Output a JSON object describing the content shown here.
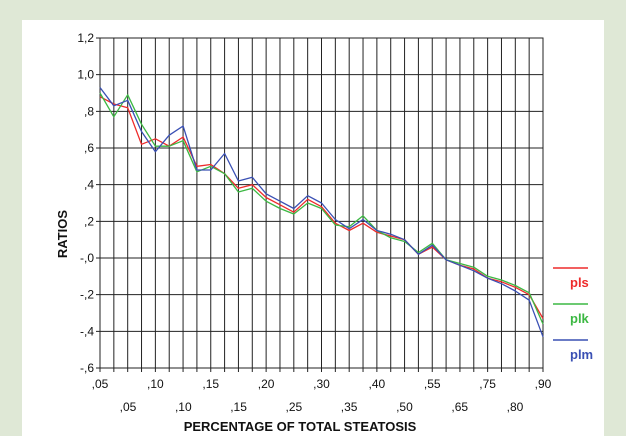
{
  "chart_data": {
    "type": "line",
    "title": "",
    "xlabel": "PERCENTAGE OF TOTAL STEATOSIS",
    "ylabel": "RATIOS",
    "ylim": [
      -0.6,
      1.2
    ],
    "yticks": [
      {
        "value": 1.2,
        "label": "1,2"
      },
      {
        "value": 1.0,
        "label": "1,0"
      },
      {
        "value": 0.8,
        "label": ",8"
      },
      {
        "value": 0.6,
        "label": ",6"
      },
      {
        "value": 0.4,
        "label": ",4"
      },
      {
        "value": 0.2,
        "label": ",2"
      },
      {
        "value": 0.0,
        "label": "-,0"
      },
      {
        "value": -0.2,
        "label": "-,2"
      },
      {
        "value": -0.4,
        "label": "-,4"
      },
      {
        "value": -0.6,
        "label": "-,6"
      }
    ],
    "xtick_labels_top": [
      ",05",
      ",10",
      ",15",
      ",20",
      ",30",
      ",40",
      ",55",
      ",75",
      ",90"
    ],
    "xtick_labels_bottom": [
      ",05",
      ",10",
      ",15",
      ",25",
      ",35",
      ",50",
      ",65",
      ",80"
    ],
    "grid": true,
    "legend_position": "right",
    "series": [
      {
        "name": "pls",
        "color": "#ee2b2b",
        "values": [
          0.88,
          0.84,
          0.82,
          0.62,
          0.65,
          0.61,
          0.66,
          0.5,
          0.51,
          0.46,
          0.38,
          0.4,
          0.33,
          0.29,
          0.25,
          0.32,
          0.28,
          0.19,
          0.15,
          0.19,
          0.14,
          0.12,
          0.1,
          0.02,
          0.06,
          -0.01,
          -0.04,
          -0.06,
          -0.11,
          -0.13,
          -0.16,
          -0.2,
          -0.33
        ]
      },
      {
        "name": "plk",
        "color": "#3cb843",
        "values": [
          0.9,
          0.77,
          0.89,
          0.73,
          0.61,
          0.61,
          0.64,
          0.47,
          0.5,
          0.46,
          0.36,
          0.38,
          0.31,
          0.27,
          0.24,
          0.3,
          0.27,
          0.18,
          0.17,
          0.23,
          0.15,
          0.11,
          0.09,
          0.03,
          0.08,
          -0.01,
          -0.03,
          -0.05,
          -0.1,
          -0.12,
          -0.15,
          -0.19,
          -0.36
        ]
      },
      {
        "name": "plm",
        "color": "#3a50b4",
        "values": [
          0.93,
          0.83,
          0.86,
          0.69,
          0.58,
          0.67,
          0.72,
          0.48,
          0.48,
          0.57,
          0.42,
          0.44,
          0.35,
          0.31,
          0.27,
          0.34,
          0.3,
          0.21,
          0.16,
          0.21,
          0.15,
          0.13,
          0.1,
          0.02,
          0.07,
          -0.01,
          -0.04,
          -0.07,
          -0.11,
          -0.14,
          -0.18,
          -0.23,
          -0.43
        ]
      }
    ]
  }
}
